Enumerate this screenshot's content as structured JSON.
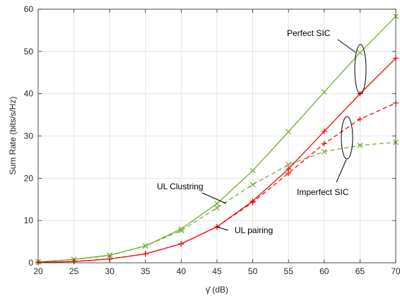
{
  "chart_data": {
    "type": "line",
    "xlabel": "γ̄ (dB)",
    "ylabel": "Sum Rate (bits/s/Hz)",
    "xlim": [
      20,
      70
    ],
    "ylim": [
      0,
      60
    ],
    "xticks": [
      20,
      25,
      30,
      35,
      40,
      45,
      50,
      55,
      60,
      65,
      70
    ],
    "yticks": [
      0,
      10,
      20,
      30,
      40,
      50,
      60
    ],
    "grid": true,
    "x": [
      20,
      25,
      30,
      35,
      40,
      45,
      50,
      55,
      60,
      65,
      70
    ],
    "series": [
      {
        "color": "#77AC30",
        "dash": "solid",
        "marker": "x",
        "values": [
          0.2,
          0.8,
          1.8,
          4.0,
          8.0,
          14.0,
          21.8,
          31.0,
          40.4,
          49.7,
          58.3
        ]
      },
      {
        "color": "#77AC30",
        "dash": "dashed",
        "marker": "x",
        "values": [
          0.2,
          0.8,
          1.7,
          4.0,
          7.6,
          13.0,
          18.5,
          23.2,
          26.3,
          27.8,
          28.5
        ]
      },
      {
        "color": "#FF0000",
        "dash": "solid",
        "marker": "+",
        "values": [
          0.1,
          0.3,
          0.9,
          2.1,
          4.5,
          8.5,
          14.6,
          22.2,
          31.1,
          40.0,
          48.4
        ]
      },
      {
        "color": "#FF0000",
        "dash": "dashed",
        "marker": "+",
        "values": [
          0.1,
          0.3,
          0.9,
          2.1,
          4.5,
          8.5,
          14.3,
          21.2,
          28.2,
          34.0,
          37.8
        ]
      }
    ],
    "annotations": {
      "perfect_sic": "Perfect SIC",
      "imperfect_sic": "Imperfect SIC",
      "ul_clustering": "UL Clustring",
      "ul_pairing": "UL pairing"
    }
  }
}
